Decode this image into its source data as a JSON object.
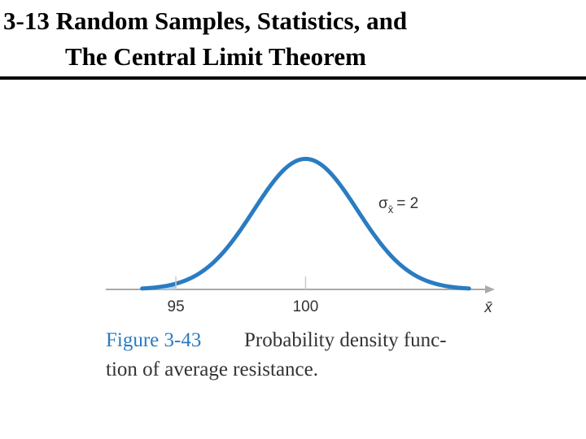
{
  "header": {
    "title_lines": [
      "3-13 Random Samples, Statistics, and",
      "The Central Limit Theorem"
    ]
  },
  "chart_data": {
    "type": "normal-density",
    "mean": 100,
    "sd": 2,
    "shade_below": 95,
    "xlim": [
      92.3,
      107.2
    ],
    "curve_xlim": [
      93.7,
      106.3
    ],
    "ylim": [
      0,
      0.2
    ],
    "xticks": [
      95,
      100
    ],
    "x_label": "x̄",
    "color": "#2a7cc1",
    "shade_color": "#b9d3ee",
    "annotation": {
      "symbol": "σ",
      "subscript": "x̄",
      "text": "= 2"
    },
    "caption": {
      "label": "Figure 3-43",
      "lines": [
        "Probability density func-",
        "tion of average resistance."
      ]
    }
  }
}
